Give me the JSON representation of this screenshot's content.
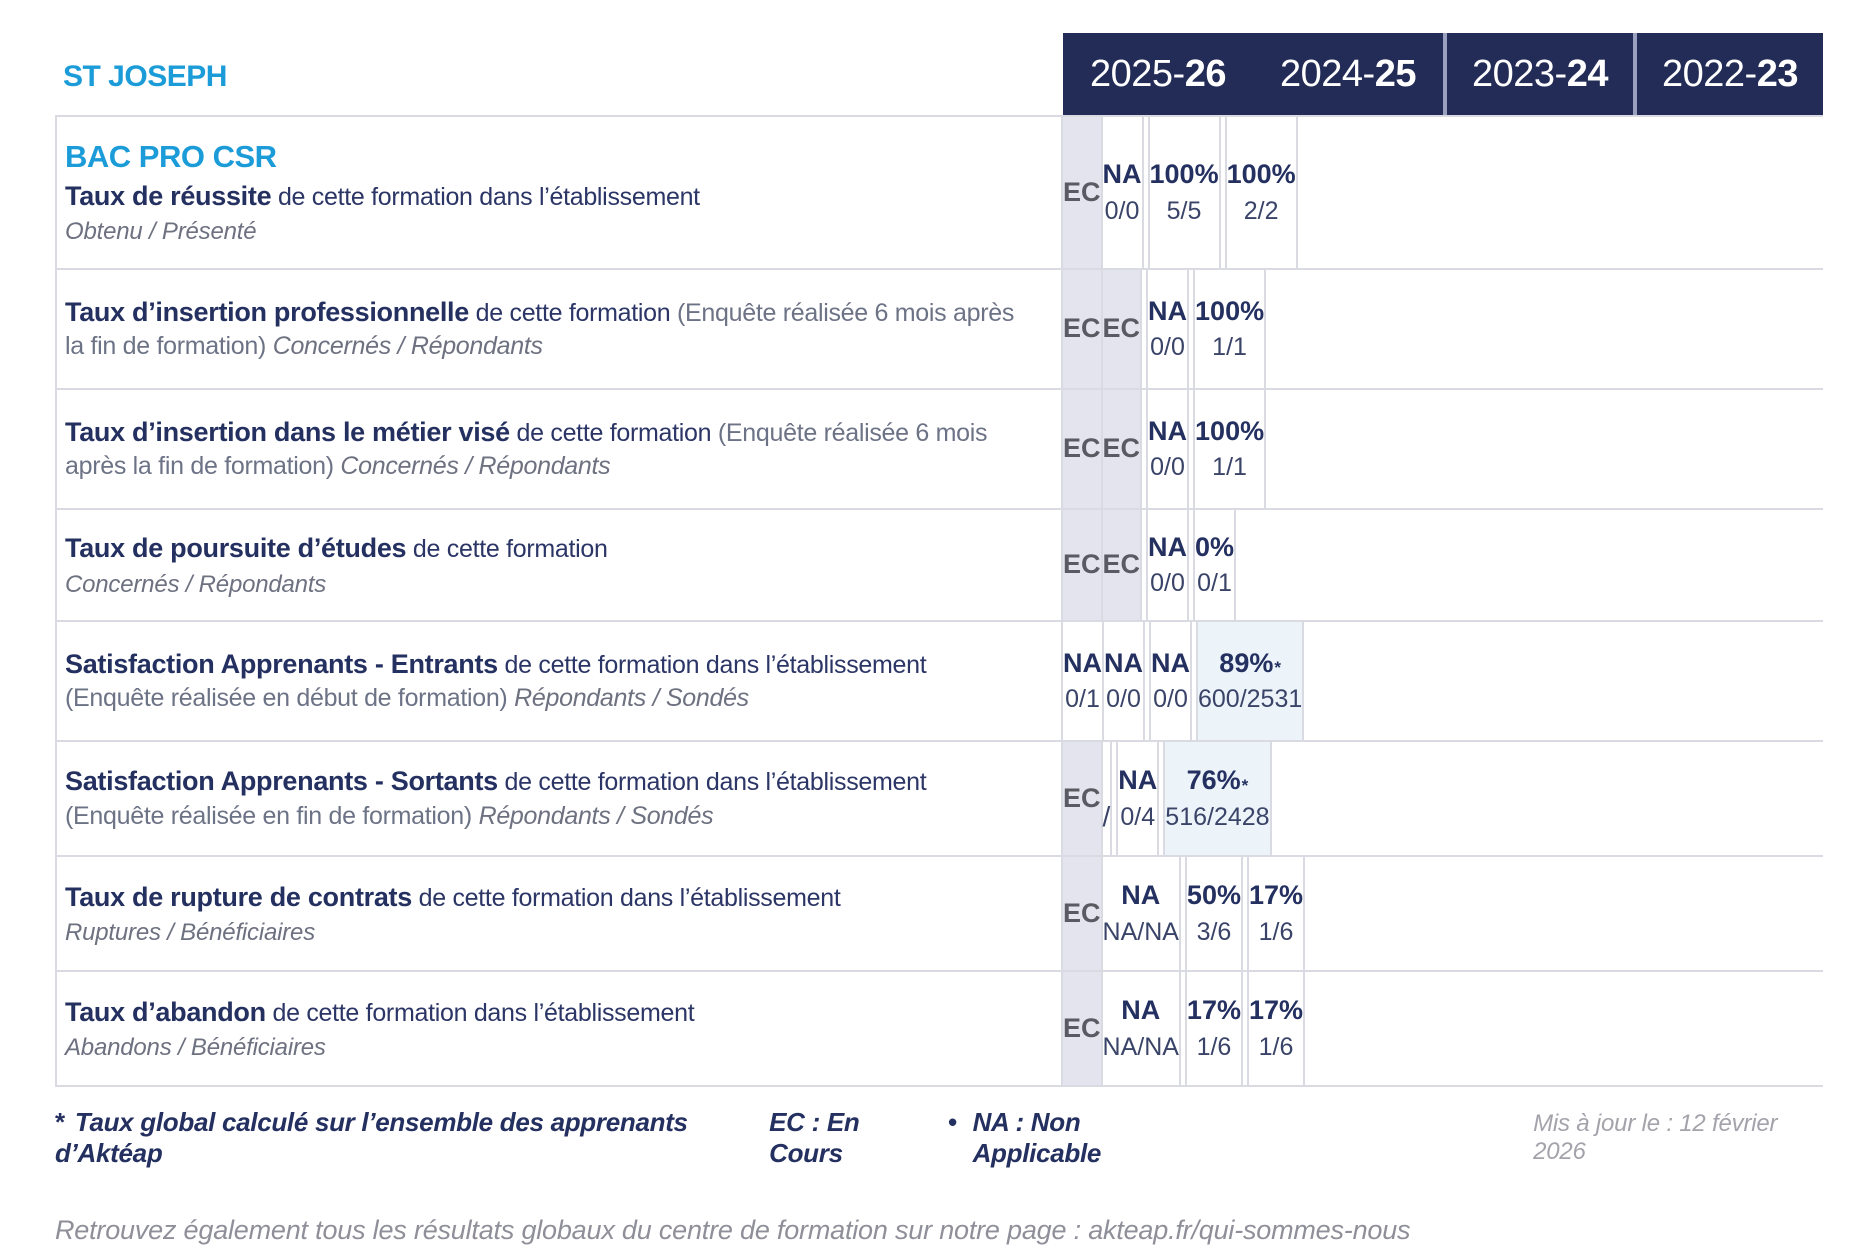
{
  "header": {
    "org": "ST JOSEPH",
    "years": [
      {
        "prefix": "2025-",
        "bold": "26"
      },
      {
        "prefix": "2024-",
        "bold": "25"
      },
      {
        "prefix": "2023-",
        "bold": "24"
      },
      {
        "prefix": "2022-",
        "bold": "23"
      }
    ]
  },
  "program": "BAC PRO CSR",
  "rows": [
    {
      "bold": "Taux de réussite",
      "rest": "de cette formation dans l’établissement",
      "paren": "",
      "ratio_inline": "",
      "ratio_block": "Obtenu / Présenté",
      "cells": [
        {
          "style": "ec",
          "main": "EC",
          "sup": "",
          "sub": ""
        },
        {
          "style": "plain",
          "main": "NA",
          "sup": "",
          "sub": "0/0"
        },
        {
          "style": "plain",
          "main": "100%",
          "sup": "",
          "sub": "5/5"
        },
        {
          "style": "plain",
          "main": "100%",
          "sup": "",
          "sub": "2/2"
        }
      ]
    },
    {
      "bold": "Taux d’insertion professionnelle",
      "rest": "de cette formation",
      "paren": "(Enquête réalisée 6 mois après la fin de formation)",
      "ratio_inline": "Concernés / Répondants",
      "ratio_block": "",
      "cells": [
        {
          "style": "ec",
          "main": "EC",
          "sup": "",
          "sub": ""
        },
        {
          "style": "ec",
          "main": "EC",
          "sup": "",
          "sub": ""
        },
        {
          "style": "plain",
          "main": "NA",
          "sup": "",
          "sub": "0/0"
        },
        {
          "style": "plain",
          "main": "100%",
          "sup": "",
          "sub": "1/1"
        }
      ]
    },
    {
      "bold": "Taux d’insertion dans le métier visé",
      "rest": "de cette formation",
      "paren": "(Enquête réalisée 6 mois après la fin de formation)",
      "ratio_inline": "Concernés / Répondants",
      "ratio_block": "",
      "cells": [
        {
          "style": "ec",
          "main": "EC",
          "sup": "",
          "sub": ""
        },
        {
          "style": "ec",
          "main": "EC",
          "sup": "",
          "sub": ""
        },
        {
          "style": "plain",
          "main": "NA",
          "sup": "",
          "sub": "0/0"
        },
        {
          "style": "plain",
          "main": "100%",
          "sup": "",
          "sub": "1/1"
        }
      ]
    },
    {
      "bold": "Taux de poursuite d’études",
      "rest": "de cette formation",
      "paren": "",
      "ratio_inline": "",
      "ratio_block": "Concernés / Répondants",
      "cells": [
        {
          "style": "ec",
          "main": "EC",
          "sup": "",
          "sub": ""
        },
        {
          "style": "ec",
          "main": "EC",
          "sup": "",
          "sub": ""
        },
        {
          "style": "plain",
          "main": "NA",
          "sup": "",
          "sub": "0/0"
        },
        {
          "style": "plain",
          "main": "0%",
          "sup": "",
          "sub": "0/1"
        }
      ]
    },
    {
      "bold": "Satisfaction Apprenants - Entrants",
      "rest": "de cette formation dans l’établissement",
      "paren": "(Enquête réalisée en début de formation)",
      "ratio_inline": "Répondants / Sondés",
      "ratio_block": "",
      "cells": [
        {
          "style": "plain",
          "main": "NA",
          "sup": "",
          "sub": "0/1"
        },
        {
          "style": "plain",
          "main": "NA",
          "sup": "",
          "sub": "0/0"
        },
        {
          "style": "plain",
          "main": "NA",
          "sup": "",
          "sub": "0/0"
        },
        {
          "style": "highlight",
          "main": "89%",
          "sup": "*",
          "sub": "600/2531"
        }
      ]
    },
    {
      "bold": "Satisfaction Apprenants - Sortants",
      "rest": "de cette formation dans l’établissement",
      "paren": "(Enquête réalisée en fin de formation)",
      "ratio_inline": "Répondants / Sondés",
      "ratio_block": "",
      "cells": [
        {
          "style": "ec",
          "main": "EC",
          "sup": "",
          "sub": ""
        },
        {
          "style": "slash",
          "main": "",
          "sup": "",
          "sub": "/"
        },
        {
          "style": "plain",
          "main": "NA",
          "sup": "",
          "sub": "0/4"
        },
        {
          "style": "highlight",
          "main": "76%",
          "sup": "*",
          "sub": "516/2428"
        }
      ]
    },
    {
      "bold": "Taux de rupture de contrats",
      "rest": "de cette formation dans l’établissement",
      "paren": "",
      "ratio_inline": "",
      "ratio_block": "Ruptures / Bénéficiaires",
      "cells": [
        {
          "style": "ec",
          "main": "EC",
          "sup": "",
          "sub": ""
        },
        {
          "style": "plain",
          "main": "NA",
          "sup": "",
          "sub": "NA/NA"
        },
        {
          "style": "plain",
          "main": "50%",
          "sup": "",
          "sub": "3/6"
        },
        {
          "style": "plain",
          "main": "17%",
          "sup": "",
          "sub": "1/6"
        }
      ]
    },
    {
      "bold": "Taux d’abandon",
      "rest": "de cette formation dans l’établissement",
      "paren": "",
      "ratio_inline": "",
      "ratio_block": "Abandons / Bénéficiaires",
      "cells": [
        {
          "style": "ec",
          "main": "EC",
          "sup": "",
          "sub": ""
        },
        {
          "style": "plain",
          "main": "NA",
          "sup": "",
          "sub": "NA/NA"
        },
        {
          "style": "plain",
          "main": "17%",
          "sup": "",
          "sub": "1/6"
        },
        {
          "style": "plain",
          "main": "17%",
          "sup": "",
          "sub": "1/6"
        }
      ]
    }
  ],
  "footer": {
    "star": "*",
    "note": "Taux global calculé sur l’ensemble des apprenants d’Aktéap",
    "legend_ec": "EC : En Cours",
    "legend_sep": "•",
    "legend_na": "NA : Non Applicable",
    "updated": "Mis à jour le : 12 février 2026",
    "more": "Retrouvez également tous les résultats globaux du centre de formation sur notre page : akteap.fr/qui-sommes-nous"
  },
  "colors": {
    "header_navy": "#222c56",
    "accent_blue": "#1b9cd8",
    "navy_text": "#243060",
    "ec_cell_bg": "#e4e4ee",
    "highlight_cell_bg": "#ecf4fa",
    "border": "#dadae3"
  }
}
